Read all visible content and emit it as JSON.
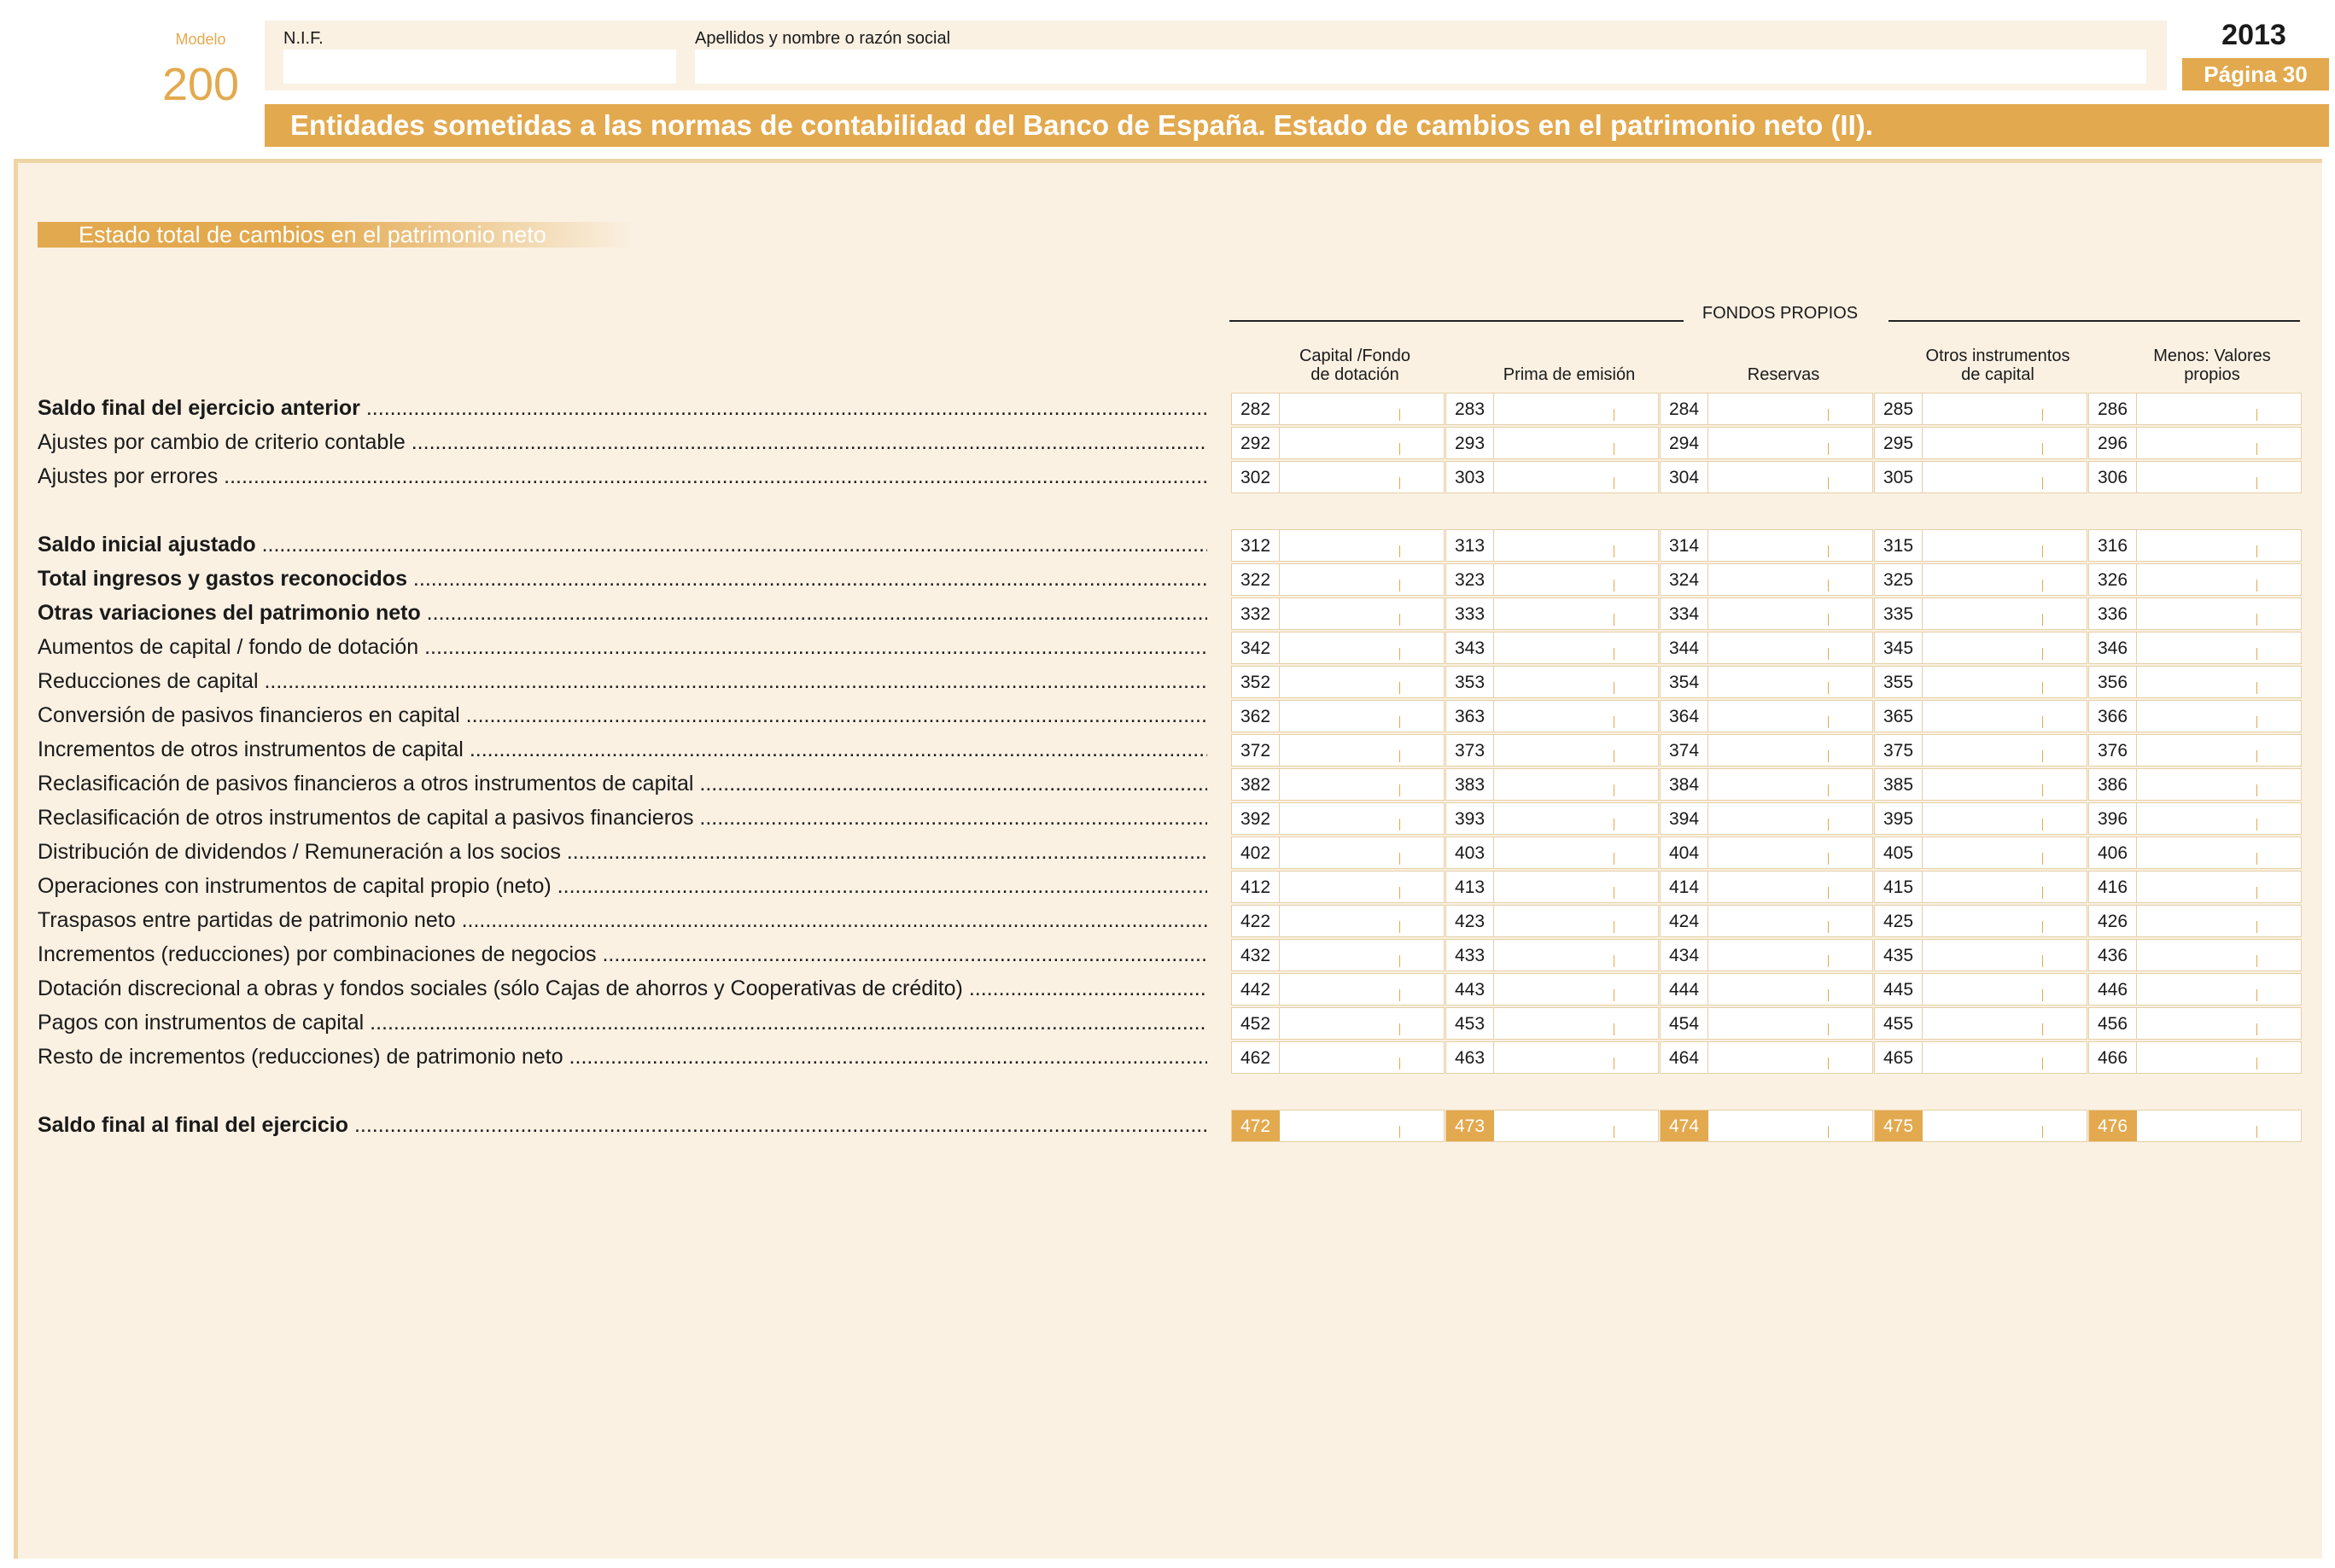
{
  "header": {
    "modelo_label": "Modelo",
    "modelo_number": "200",
    "nif_label": "N.I.F.",
    "nombre_label": "Apellidos y nombre o razón social",
    "year": "2013",
    "page": "Página 30",
    "title": "Entidades sometidas a las normas de contabilidad del Banco de España. Estado de cambios en el patrimonio neto (II)."
  },
  "section_title": "Estado total de cambios en el patrimonio neto",
  "group_label": "FONDOS PROPIOS",
  "columns": [
    {
      "line1": "Capital /Fondo",
      "line2": "de dotación"
    },
    {
      "line1": "",
      "line2": "Prima de emisión"
    },
    {
      "line1": "",
      "line2": "Reservas"
    },
    {
      "line1": "Otros instrumentos",
      "line2": "de capital"
    },
    {
      "line1": "Menos: Valores",
      "line2": "propios"
    }
  ],
  "rows": [
    {
      "label": "Saldo final del ejercicio anterior",
      "bold": true,
      "codes": [
        "282",
        "283",
        "284",
        "285",
        "286"
      ]
    },
    {
      "label": "Ajustes por cambio de criterio contable",
      "bold": false,
      "codes": [
        "292",
        "293",
        "294",
        "295",
        "296"
      ]
    },
    {
      "label": "Ajustes por errores",
      "bold": false,
      "codes": [
        "302",
        "303",
        "304",
        "305",
        "306"
      ]
    },
    {
      "label": "Saldo inicial ajustado",
      "bold": true,
      "codes": [
        "312",
        "313",
        "314",
        "315",
        "316"
      ]
    },
    {
      "label": "Total ingresos y gastos reconocidos",
      "bold": true,
      "codes": [
        "322",
        "323",
        "324",
        "325",
        "326"
      ]
    },
    {
      "label": "Otras variaciones del patrimonio neto",
      "bold": true,
      "codes": [
        "332",
        "333",
        "334",
        "335",
        "336"
      ]
    },
    {
      "label": "Aumentos de capital / fondo de dotación",
      "bold": false,
      "codes": [
        "342",
        "343",
        "344",
        "345",
        "346"
      ]
    },
    {
      "label": "Reducciones de capital",
      "bold": false,
      "codes": [
        "352",
        "353",
        "354",
        "355",
        "356"
      ]
    },
    {
      "label": "Conversión de pasivos financieros en capital",
      "bold": false,
      "codes": [
        "362",
        "363",
        "364",
        "365",
        "366"
      ]
    },
    {
      "label": "Incrementos de otros instrumentos de capital",
      "bold": false,
      "codes": [
        "372",
        "373",
        "374",
        "375",
        "376"
      ]
    },
    {
      "label": "Reclasificación de pasivos financieros a otros instrumentos de capital",
      "bold": false,
      "codes": [
        "382",
        "383",
        "384",
        "385",
        "386"
      ]
    },
    {
      "label": "Reclasificación de otros instrumentos de capital a pasivos financieros",
      "bold": false,
      "codes": [
        "392",
        "393",
        "394",
        "395",
        "396"
      ]
    },
    {
      "label": "Distribución de dividendos / Remuneración a los socios",
      "bold": false,
      "codes": [
        "402",
        "403",
        "404",
        "405",
        "406"
      ]
    },
    {
      "label": "Operaciones con instrumentos de capital propio (neto)",
      "bold": false,
      "codes": [
        "412",
        "413",
        "414",
        "415",
        "416"
      ]
    },
    {
      "label": "Traspasos entre partidas de patrimonio neto",
      "bold": false,
      "codes": [
        "422",
        "423",
        "424",
        "425",
        "426"
      ]
    },
    {
      "label": "Incrementos (reducciones) por combinaciones de negocios",
      "bold": false,
      "codes": [
        "432",
        "433",
        "434",
        "435",
        "436"
      ]
    },
    {
      "label": "Dotación discrecional a obras y fondos sociales (sólo Cajas de ahorros y Cooperativas de crédito)",
      "bold": false,
      "codes": [
        "442",
        "443",
        "444",
        "445",
        "446"
      ]
    },
    {
      "label": "Pagos con instrumentos de capital",
      "bold": false,
      "codes": [
        "452",
        "453",
        "454",
        "455",
        "456"
      ]
    },
    {
      "label": "Resto de incrementos (reducciones) de patrimonio neto",
      "bold": false,
      "codes": [
        "462",
        "463",
        "464",
        "465",
        "466"
      ]
    },
    {
      "label": "Saldo final al final del ejercicio",
      "bold": true,
      "highlight": true,
      "codes": [
        "472",
        "473",
        "474",
        "475",
        "476"
      ]
    }
  ]
}
